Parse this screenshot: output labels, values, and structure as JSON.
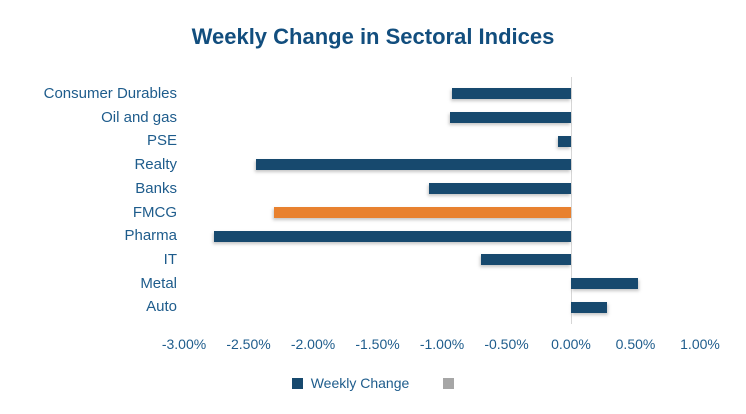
{
  "title": "Weekly Change in Sectoral Indices",
  "colors": {
    "bar_navy": "#17496E",
    "bar_highlight": "#E8812F",
    "title_text": "#124E7E",
    "axis_text": "#1E5C8C",
    "zero_line": "#D6D6D6",
    "legend_gray": "#A6A6A6"
  },
  "chart_data": {
    "type": "bar",
    "orientation": "horizontal",
    "title": "Weekly Change in Sectoral Indices",
    "categories": [
      "Consumer Durables",
      "Oil and gas",
      "PSE",
      "Realty",
      "Banks",
      "FMCG",
      "Pharma",
      "IT",
      "Metal",
      "Auto"
    ],
    "values": [
      -0.92,
      -0.94,
      -0.1,
      -2.44,
      -1.1,
      -2.3,
      -2.77,
      -0.7,
      0.52,
      0.28
    ],
    "unit": "%",
    "highlighted_category": "FMCG",
    "xlim": [
      -3.0,
      1.0
    ],
    "x_tick_step": 0.5,
    "x_ticks": [
      "-3.00%",
      "-2.50%",
      "-2.00%",
      "-1.50%",
      "-1.00%",
      "-0.50%",
      "0.00%",
      "0.50%",
      "1.00%"
    ],
    "grid": "zero-line-only",
    "legend_position": "bottom",
    "legend": [
      {
        "label": "Weekly Change",
        "color": "#17496E"
      },
      {
        "label": "",
        "color": "#A6A6A6"
      }
    ]
  }
}
